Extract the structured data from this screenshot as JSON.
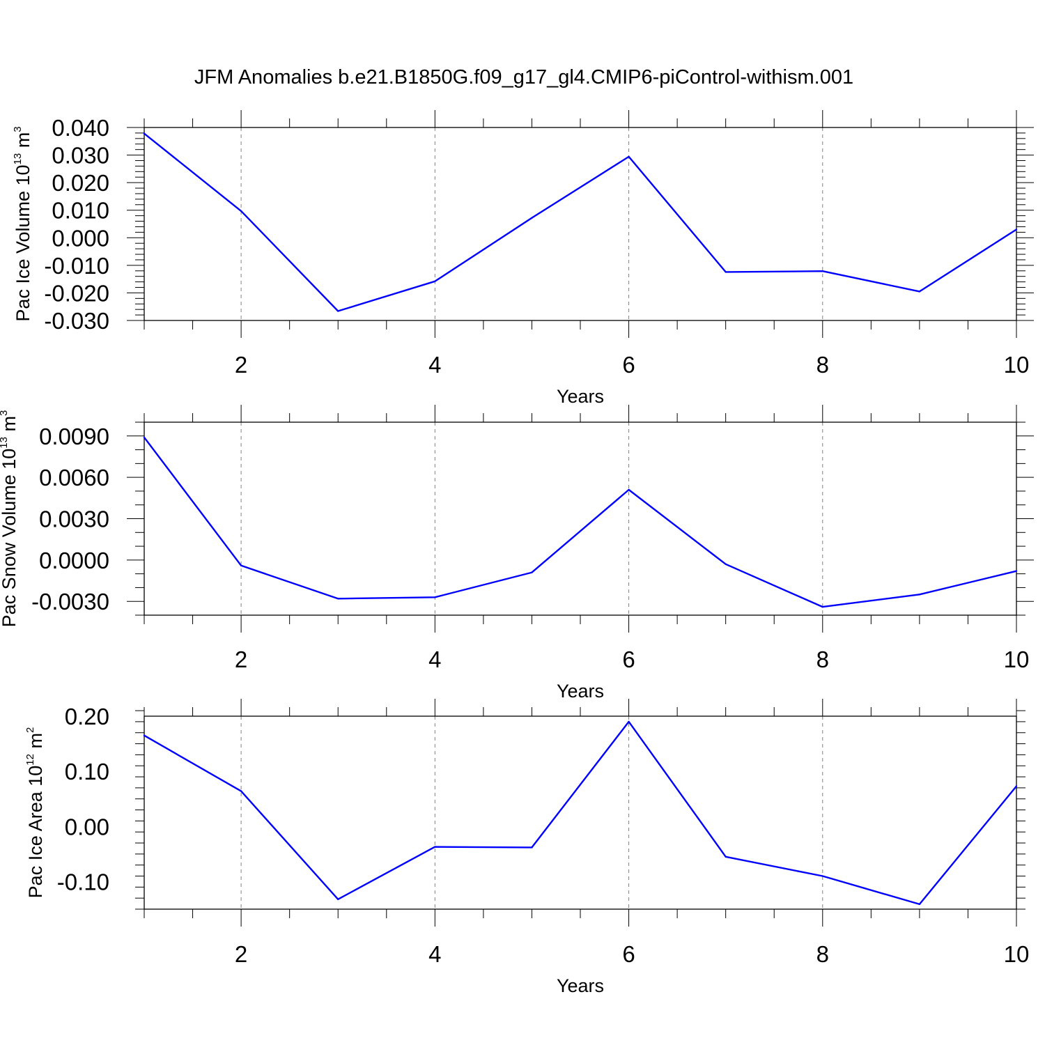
{
  "title": "JFM Anomalies b.e21.B1850G.f09_g17_gl4.CMIP6-piControl-withism.001",
  "colors": {
    "line": "#0000ff",
    "axes": "#000000",
    "grid": "#808080",
    "background": "#ffffff"
  },
  "chart_data": [
    {
      "type": "line",
      "title": "",
      "xlabel": "Years",
      "ylabel": {
        "text": "Pac Ice Volume 10",
        "exponent": "13",
        "unit": " m",
        "unit_exponent": "3"
      },
      "x": [
        1,
        2,
        3,
        4,
        5,
        6,
        7,
        8,
        9,
        10
      ],
      "series": [
        {
          "values": [
            0.0378,
            0.0097,
            -0.0266,
            -0.0158,
            0.0072,
            0.0294,
            -0.0124,
            -0.0121,
            -0.0195,
            0.003
          ]
        }
      ],
      "xlim": [
        1,
        10
      ],
      "ylim": [
        -0.03,
        0.04
      ],
      "xticks": [
        2,
        4,
        6,
        8,
        10
      ],
      "xtick_labels": [
        "2",
        "4",
        "6",
        "8",
        "10"
      ],
      "yticks": [
        -0.03,
        -0.02,
        -0.01,
        0.0,
        0.01,
        0.02,
        0.03,
        0.04
      ],
      "ytick_labels": [
        "-0.030",
        "-0.020",
        "-0.010",
        "0.000",
        "0.010",
        "0.020",
        "0.030",
        "0.040"
      ],
      "y_minor_step": 0.002,
      "grid": "vertical dashed at major x ticks",
      "legend": "none"
    },
    {
      "type": "line",
      "title": "",
      "xlabel": "Years",
      "ylabel": {
        "text": "Pac Snow Volume 10",
        "exponent": "13",
        "unit": " m",
        "unit_exponent": "3"
      },
      "x": [
        1,
        2,
        3,
        4,
        5,
        6,
        7,
        8,
        9,
        10
      ],
      "series": [
        {
          "values": [
            0.0089,
            -0.0004,
            -0.0028,
            -0.0027,
            -0.0009,
            0.0051,
            -0.0003,
            -0.0034,
            -0.0025,
            -0.0008
          ]
        }
      ],
      "xlim": [
        1,
        10
      ],
      "ylim": [
        -0.004,
        0.01
      ],
      "xticks": [
        2,
        4,
        6,
        8,
        10
      ],
      "xtick_labels": [
        "2",
        "4",
        "6",
        "8",
        "10"
      ],
      "yticks": [
        -0.003,
        0.0,
        0.003,
        0.006,
        0.009
      ],
      "ytick_labels": [
        "-0.0030",
        "0.0000",
        "0.0030",
        "0.0060",
        "0.0090"
      ],
      "y_minor_step": 0.001,
      "grid": "vertical dashed at major x ticks",
      "legend": "none"
    },
    {
      "type": "line",
      "title": "",
      "xlabel": "Years",
      "ylabel": {
        "text": "Pac Ice Area 10",
        "exponent": "12",
        "unit": " m",
        "unit_exponent": "2"
      },
      "x": [
        1,
        2,
        3,
        4,
        5,
        6,
        7,
        8,
        9,
        10
      ],
      "series": [
        {
          "values": [
            0.165,
            0.064,
            -0.132,
            -0.037,
            -0.038,
            0.19,
            -0.055,
            -0.09,
            -0.141,
            0.073
          ]
        }
      ],
      "xlim": [
        1,
        10
      ],
      "ylim": [
        -0.15,
        0.2
      ],
      "xticks": [
        2,
        4,
        6,
        8,
        10
      ],
      "xtick_labels": [
        "2",
        "4",
        "6",
        "8",
        "10"
      ],
      "yticks": [
        -0.1,
        0.0,
        0.1,
        0.2
      ],
      "ytick_labels": [
        "-0.10",
        "0.00",
        "0.10",
        "0.20"
      ],
      "y_minor_step": 0.02,
      "grid": "vertical dashed at major x ticks",
      "legend": "none"
    }
  ]
}
